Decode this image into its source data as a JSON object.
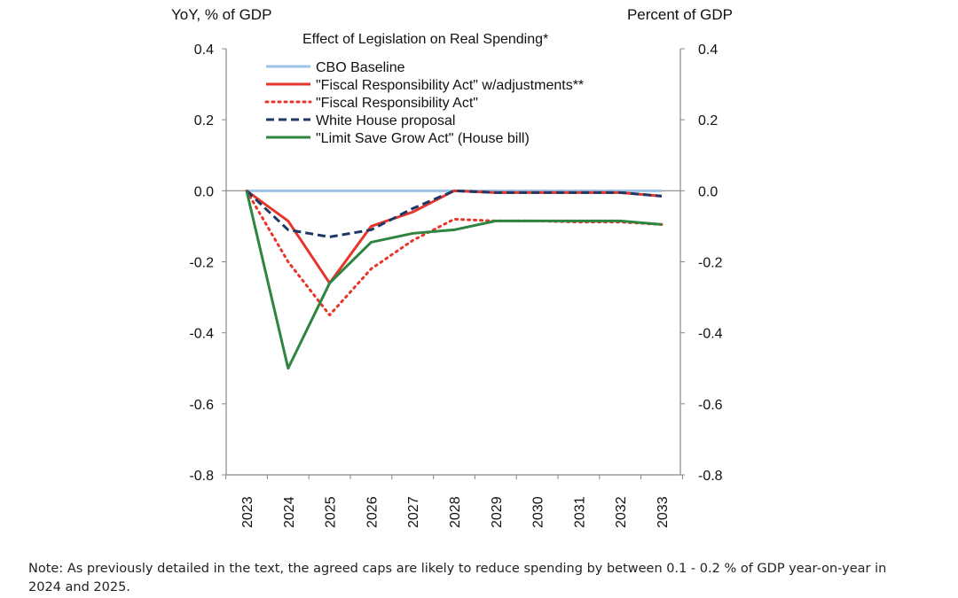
{
  "chart_data": {
    "type": "line",
    "title": "Effect of Legislation on Real Spending*",
    "ylabel_left": "YoY, % of GDP",
    "ylabel_right": "Percent of GDP",
    "ylim": [
      -0.8,
      0.4
    ],
    "yticks": [
      "0.4",
      "0.2",
      "0.0",
      "-0.2",
      "-0.4",
      "-0.6",
      "-0.8"
    ],
    "categories": [
      "2023",
      "2024",
      "2025",
      "2026",
      "2027",
      "2028",
      "2029",
      "2030",
      "2031",
      "2032",
      "2033"
    ],
    "legend_position": "top",
    "grid": false,
    "series": [
      {
        "name": "CBO Baseline",
        "color": "#9dc3e6",
        "style": "solid",
        "values": [
          0,
          0,
          0,
          0,
          0,
          0,
          0,
          0,
          0,
          0,
          0
        ]
      },
      {
        "name": "\"Fiscal Responsibility Act\" w/adjustments**",
        "color": "#e8352b",
        "style": "solid",
        "values": [
          0,
          -0.085,
          -0.26,
          -0.1,
          -0.06,
          0,
          -0.005,
          -0.005,
          -0.005,
          -0.005,
          -0.015
        ]
      },
      {
        "name": "\"Fiscal Responsibility Act\"",
        "color": "#e8352b",
        "style": "dotted",
        "values": [
          0,
          -0.2,
          -0.35,
          -0.22,
          -0.14,
          -0.08,
          -0.085,
          -0.085,
          -0.088,
          -0.088,
          -0.095
        ]
      },
      {
        "name": "White House proposal",
        "color": "#1f3864",
        "style": "dashed",
        "values": [
          0,
          -0.11,
          -0.13,
          -0.11,
          -0.05,
          0,
          -0.005,
          -0.005,
          -0.005,
          -0.005,
          -0.015
        ]
      },
      {
        "name": "\"Limit Save Grow Act\" (House bill)",
        "color": "#2e8540",
        "style": "solid",
        "values": [
          0,
          -0.5,
          -0.26,
          -0.145,
          -0.12,
          -0.11,
          -0.085,
          -0.085,
          -0.085,
          -0.085,
          -0.095
        ]
      }
    ]
  },
  "note": {
    "label": "Note:",
    "text": " As previously detailed in the text, the agreed caps are likely to reduce spending by between 0.1 - 0.2 % of GDP year-on-year in 2024 and 2025."
  }
}
